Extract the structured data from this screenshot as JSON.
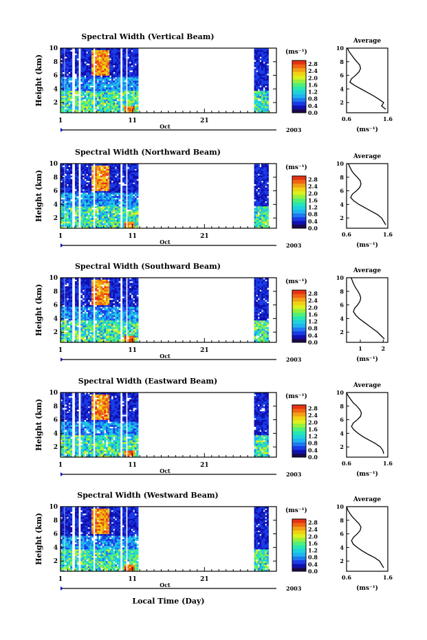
{
  "figure": {
    "xlabel": "Local Time (Day)",
    "month_label": "Oct",
    "year_label": "2003",
    "ylabel": "Height (km)",
    "avg_title": "Average",
    "avg_xlabel": "(ms⁻¹)",
    "colorbar_unit": "(ms⁻¹)",
    "colormap": [
      "#1a0a4d",
      "#1010b0",
      "#1a3ce6",
      "#1e78f0",
      "#1eb4f0",
      "#1ed2dc",
      "#28e6b4",
      "#50f078",
      "#96f03c",
      "#dcf01e",
      "#f0d214",
      "#f0a014",
      "#f06414",
      "#e63214"
    ]
  },
  "chart_data": [
    {
      "type": "heatmap",
      "title": "Spectral Width (Vertical Beam)",
      "x_ticks": [
        "1",
        "11",
        "21"
      ],
      "xlim": [
        1,
        31
      ],
      "ylim": [
        0.5,
        10
      ],
      "y_ticks": [
        "2",
        "4",
        "6",
        "8",
        "10"
      ],
      "colorbar_ticks": [
        "0.0",
        "0.4",
        "0.8",
        "1.2",
        "1.6",
        "2.0",
        "2.4",
        "2.8"
      ],
      "colorbar_range": [
        0,
        3
      ],
      "average_profile": {
        "xlim": [
          0.6,
          1.6
        ],
        "x_ticks": [
          "0.6",
          "1.6"
        ],
        "height": [
          1.0,
          1.5,
          2.0,
          2.5,
          3.0,
          3.5,
          4.0,
          4.5,
          5.0,
          5.5,
          6.0,
          6.5,
          7.0,
          7.5,
          8.0,
          8.5,
          9.0,
          9.5,
          10.0
        ],
        "width": [
          1.55,
          1.45,
          1.5,
          1.38,
          1.25,
          1.1,
          0.95,
          0.8,
          0.68,
          0.72,
          0.82,
          0.9,
          0.94,
          0.92,
          0.85,
          0.78,
          0.72,
          0.66,
          0.62
        ]
      }
    },
    {
      "type": "heatmap",
      "title": "Spectral Width (Northward Beam)",
      "x_ticks": [
        "1",
        "11",
        "21"
      ],
      "xlim": [
        1,
        31
      ],
      "ylim": [
        0.5,
        10
      ],
      "y_ticks": [
        "2",
        "4",
        "6",
        "8",
        "10"
      ],
      "colorbar_ticks": [
        "0.0",
        "0.4",
        "0.8",
        "1.2",
        "1.6",
        "2.0",
        "2.4",
        "2.8"
      ],
      "colorbar_range": [
        0,
        3
      ],
      "average_profile": {
        "xlim": [
          0.6,
          1.6
        ],
        "x_ticks": [
          "0.6",
          "1.6"
        ],
        "height": [
          1.0,
          1.5,
          2.0,
          2.5,
          3.0,
          3.5,
          4.0,
          4.5,
          5.0,
          5.5,
          6.0,
          6.5,
          7.0,
          7.5,
          8.0,
          8.5,
          9.0,
          9.5,
          10.0
        ],
        "width": [
          1.55,
          1.5,
          1.45,
          1.35,
          1.2,
          1.05,
          0.9,
          0.78,
          0.7,
          0.74,
          0.84,
          0.92,
          0.95,
          0.93,
          0.86,
          0.78,
          0.72,
          0.68,
          0.64
        ]
      }
    },
    {
      "type": "heatmap",
      "title": "Spectral Width (Southward Beam)",
      "x_ticks": [
        "1",
        "11",
        "21"
      ],
      "xlim": [
        1,
        31
      ],
      "ylim": [
        0.5,
        10
      ],
      "y_ticks": [
        "2",
        "4",
        "6",
        "8",
        "10"
      ],
      "colorbar_ticks": [
        "0.0",
        "0.4",
        "0.8",
        "1.2",
        "1.6",
        "2.0",
        "2.4",
        "2.8"
      ],
      "colorbar_range": [
        0,
        3
      ],
      "average_profile": {
        "xlim": [
          0.4,
          2.2
        ],
        "x_ticks": [
          "1",
          "2"
        ],
        "height": [
          1.0,
          1.5,
          2.0,
          2.5,
          3.0,
          3.5,
          4.0,
          4.5,
          5.0,
          5.5,
          6.0,
          6.5,
          7.0,
          7.5,
          8.0,
          8.5,
          9.0,
          9.5,
          10.0
        ],
        "width": [
          2.05,
          1.9,
          1.75,
          1.55,
          1.35,
          1.15,
          0.95,
          0.8,
          0.7,
          0.75,
          0.88,
          0.98,
          1.02,
          0.98,
          0.9,
          0.8,
          0.72,
          0.66,
          0.6
        ]
      }
    },
    {
      "type": "heatmap",
      "title": "Spectral Width (Eastward Beam)",
      "x_ticks": [
        "1",
        "11",
        "21"
      ],
      "xlim": [
        1,
        31
      ],
      "ylim": [
        0.5,
        10
      ],
      "y_ticks": [
        "2",
        "4",
        "6",
        "8",
        "10"
      ],
      "colorbar_ticks": [
        "0.0",
        "0.4",
        "0.8",
        "1.2",
        "1.6",
        "2.0",
        "2.4",
        "2.8"
      ],
      "colorbar_range": [
        0,
        3
      ],
      "average_profile": {
        "xlim": [
          0.6,
          1.6
        ],
        "x_ticks": [
          "0.6",
          "1.6"
        ],
        "height": [
          1.0,
          1.5,
          2.0,
          2.5,
          3.0,
          3.5,
          4.0,
          4.5,
          5.0,
          5.5,
          6.0,
          6.5,
          7.0,
          7.5,
          8.0,
          8.5,
          9.0,
          9.5,
          10.0
        ],
        "width": [
          1.5,
          1.48,
          1.42,
          1.3,
          1.15,
          1.0,
          0.88,
          0.78,
          0.72,
          0.76,
          0.86,
          0.94,
          0.96,
          0.92,
          0.85,
          0.76,
          0.7,
          0.64,
          0.6
        ]
      }
    },
    {
      "type": "heatmap",
      "title": "Spectral Width (Westward Beam)",
      "x_ticks": [
        "1",
        "11",
        "21"
      ],
      "xlim": [
        1,
        31
      ],
      "ylim": [
        0.5,
        10
      ],
      "y_ticks": [
        "2",
        "4",
        "6",
        "8",
        "10"
      ],
      "colorbar_ticks": [
        "0.0",
        "0.4",
        "0.8",
        "1.2",
        "1.6",
        "2.0",
        "2.4",
        "2.8"
      ],
      "colorbar_range": [
        0,
        3
      ],
      "average_profile": {
        "xlim": [
          0.6,
          1.6
        ],
        "x_ticks": [
          "0.6",
          "1.6"
        ],
        "height": [
          1.0,
          1.5,
          2.0,
          2.5,
          3.0,
          3.5,
          4.0,
          4.5,
          5.0,
          5.5,
          6.0,
          6.5,
          7.0,
          7.5,
          8.0,
          8.5,
          9.0,
          9.5,
          10.0
        ],
        "width": [
          1.5,
          1.45,
          1.4,
          1.28,
          1.12,
          0.98,
          0.86,
          0.76,
          0.72,
          0.77,
          0.86,
          0.93,
          0.95,
          0.9,
          0.82,
          0.74,
          0.68,
          0.63,
          0.6
        ]
      }
    }
  ]
}
